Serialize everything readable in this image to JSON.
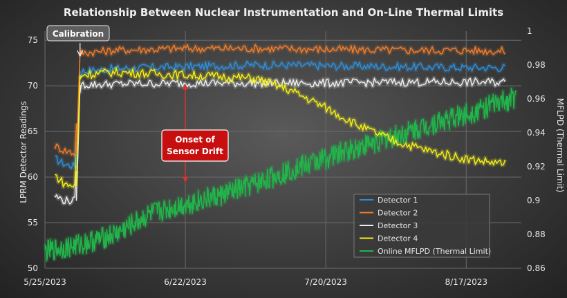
{
  "chart_data": {
    "type": "line",
    "title": "Relationship Between Nuclear Instrumentation and On-Line Thermal Limits",
    "ylabel_left": "LPRM Detector Readings",
    "ylabel_right": "MFLPD (Thermal Limit)",
    "ylim_left": [
      50,
      76
    ],
    "ylim_right": [
      0.86,
      1.0
    ],
    "xlim": [
      "2023-05-25",
      "2023-08-28"
    ],
    "x_ticks": [
      "5/25/2023",
      "6/22/2023",
      "7/20/2023",
      "8/17/2023"
    ],
    "y_ticks_left": [
      "50",
      "55",
      "60",
      "65",
      "70",
      "75"
    ],
    "y_ticks_right": [
      "0.86",
      "0.88",
      "0.9",
      "0.92",
      "0.94",
      "0.96",
      "0.98",
      "1"
    ],
    "grid": true,
    "legend_position": "bottom-right",
    "series": [
      {
        "name": "Detector 1",
        "axis": "left",
        "color": "#2e8fd8",
        "x": [
          "2023-05-27",
          "2023-05-29",
          "2023-05-31",
          "2023-06-01",
          "2023-06-08",
          "2023-06-22",
          "2023-07-06",
          "2023-07-20",
          "2023-08-03",
          "2023-08-17",
          "2023-08-25"
        ],
        "y": [
          62.0,
          61.4,
          61.2,
          71.6,
          71.9,
          72.1,
          72.3,
          72.2,
          72.1,
          72.0,
          72.0
        ]
      },
      {
        "name": "Detector 2",
        "axis": "left",
        "color": "#ef7d2c",
        "x": [
          "2023-05-27",
          "2023-05-29",
          "2023-05-31",
          "2023-06-01",
          "2023-06-08",
          "2023-06-22",
          "2023-07-06",
          "2023-07-20",
          "2023-08-03",
          "2023-08-17",
          "2023-08-25"
        ],
        "y": [
          63.4,
          62.9,
          62.6,
          73.6,
          73.9,
          74.1,
          74.1,
          74.0,
          73.9,
          73.9,
          73.8
        ]
      },
      {
        "name": "Detector 3",
        "axis": "left",
        "color": "#ededed",
        "x": [
          "2023-05-27",
          "2023-05-29",
          "2023-05-31",
          "2023-06-01",
          "2023-06-08",
          "2023-06-22",
          "2023-07-06",
          "2023-07-20",
          "2023-08-03",
          "2023-08-17",
          "2023-08-25"
        ],
        "y": [
          57.9,
          57.4,
          57.4,
          70.1,
          70.2,
          70.3,
          70.3,
          70.3,
          70.4,
          70.4,
          70.4
        ]
      },
      {
        "name": "Detector 4",
        "axis": "left",
        "color": "#f2ef18",
        "x": [
          "2023-05-27",
          "2023-05-29",
          "2023-05-31",
          "2023-06-01",
          "2023-06-08",
          "2023-06-22",
          "2023-07-06",
          "2023-07-13",
          "2023-07-20",
          "2023-07-27",
          "2023-08-03",
          "2023-08-10",
          "2023-08-17",
          "2023-08-25"
        ],
        "y": [
          60.2,
          59.2,
          59.0,
          71.2,
          71.5,
          71.2,
          70.8,
          69.5,
          67.6,
          65.5,
          63.9,
          62.8,
          62.0,
          61.4
        ]
      },
      {
        "name": "Online MFLPD (Thermal Limit)",
        "axis": "right",
        "color": "#22b34a",
        "x": [
          "2023-05-25",
          "2023-06-01",
          "2023-06-08",
          "2023-06-15",
          "2023-06-22",
          "2023-06-29",
          "2023-07-06",
          "2023-07-13",
          "2023-07-20",
          "2023-07-27",
          "2023-08-03",
          "2023-08-10",
          "2023-08-17",
          "2023-08-24",
          "2023-08-27"
        ],
        "y": [
          0.87,
          0.874,
          0.88,
          0.892,
          0.898,
          0.903,
          0.91,
          0.918,
          0.925,
          0.932,
          0.938,
          0.945,
          0.951,
          0.958,
          0.961
        ]
      }
    ],
    "annotations": [
      {
        "text": "Calibration",
        "x": "2023-06-01"
      },
      {
        "text": "Onset of Sensor Drift",
        "x": "2023-06-22"
      }
    ]
  }
}
